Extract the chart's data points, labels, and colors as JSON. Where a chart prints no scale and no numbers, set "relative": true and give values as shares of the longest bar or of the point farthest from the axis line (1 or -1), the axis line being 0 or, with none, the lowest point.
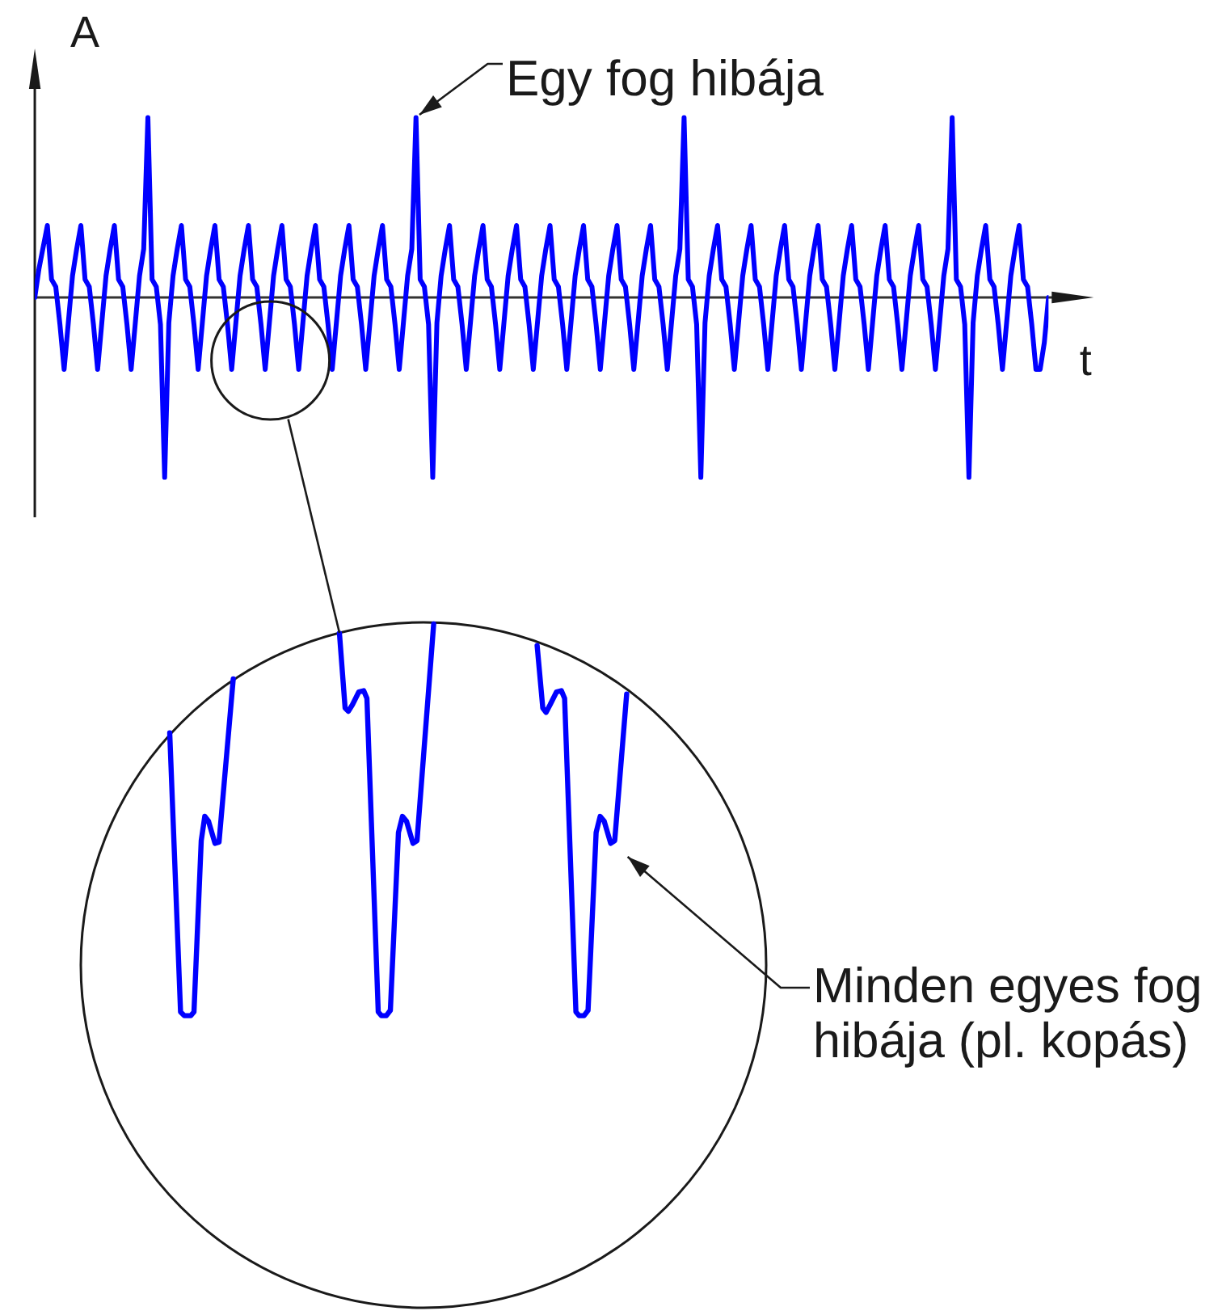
{
  "chart_data": {
    "type": "line",
    "relative": true,
    "xlabel": "t",
    "ylabel": "A",
    "color": "#0000ff",
    "annotations": [
      "Egy fog hibája",
      "Minden egyes fog hibája (pl. kopás)"
    ],
    "categories": [
      null,
      null,
      null,
      null,
      null,
      null,
      null,
      null,
      null,
      null,
      null,
      null,
      null,
      null,
      null,
      null,
      null,
      null,
      null,
      null,
      null,
      null,
      null,
      null,
      null,
      null,
      null,
      null,
      null,
      null,
      null,
      null,
      null,
      null,
      null,
      null,
      null,
      null,
      null,
      null,
      null,
      null,
      null,
      null,
      null,
      null,
      null,
      null,
      null,
      null,
      null,
      null,
      null,
      null,
      null,
      null,
      null,
      null,
      null,
      null,
      null,
      null,
      null,
      null,
      null,
      null,
      null,
      null,
      null,
      null,
      null,
      null,
      null,
      null,
      null,
      null,
      null,
      null,
      null,
      null,
      null,
      null,
      null,
      null,
      null,
      null,
      null,
      null,
      null,
      null,
      null,
      null,
      null,
      null,
      null,
      null,
      null,
      null,
      null,
      null,
      null,
      null,
      null,
      null,
      null,
      null,
      null,
      null,
      null,
      null,
      null,
      null,
      null,
      null,
      null,
      null,
      null,
      null,
      null,
      null,
      null,
      null,
      null,
      null,
      null,
      null,
      null,
      null,
      null,
      null,
      null,
      null,
      null,
      null,
      null,
      null,
      null,
      null,
      null,
      null,
      null,
      null,
      null,
      null,
      null,
      null,
      null,
      null,
      null,
      null,
      null,
      null,
      null,
      null,
      null,
      null,
      null,
      null,
      null,
      null,
      null,
      null,
      null,
      null,
      null,
      null,
      null,
      null,
      null,
      null,
      null,
      null,
      null,
      null,
      null,
      null,
      null,
      null,
      null,
      null,
      null,
      null,
      null,
      null,
      null,
      null,
      null,
      null,
      null,
      null,
      null,
      null,
      null,
      null,
      null,
      null,
      null,
      null,
      null,
      null,
      null,
      null,
      null,
      null,
      null,
      null,
      null,
      null,
      null,
      null,
      null,
      null,
      null,
      null,
      null,
      null,
      null,
      null,
      null,
      null,
      null,
      null,
      null,
      null,
      null,
      null,
      null,
      null,
      null,
      null,
      null,
      null,
      null,
      null,
      null,
      null,
      null,
      null,
      null,
      null,
      null,
      null,
      null
    ],
    "values": [
      0,
      0.16,
      0.28,
      0.4,
      0.1,
      0.06,
      -0.15,
      -0.4,
      -0.14,
      0.12,
      0.27,
      0.4,
      0.1,
      0.06,
      -0.15,
      -0.4,
      -0.14,
      0.12,
      0.27,
      0.4,
      0.1,
      0.06,
      -0.15,
      -0.4,
      -0.14,
      0.12,
      0.27,
      1,
      0.1,
      0.06,
      -0.15,
      -1,
      -0.14,
      0.12,
      0.27,
      0.4,
      0.1,
      0.06,
      -0.15,
      -0.4,
      -0.14,
      0.12,
      0.27,
      0.4,
      0.1,
      0.06,
      -0.15,
      -0.4,
      -0.14,
      0.12,
      0.27,
      0.4,
      0.1,
      0.06,
      -0.15,
      -0.4,
      -0.14,
      0.12,
      0.27,
      0.4,
      0.1,
      0.06,
      -0.15,
      -0.4,
      -0.14,
      0.12,
      0.27,
      0.4,
      0.1,
      0.06,
      -0.15,
      -0.4,
      -0.14,
      0.12,
      0.27,
      0.4,
      0.1,
      0.06,
      -0.15,
      -0.4,
      -0.14,
      0.12,
      0.27,
      0.4,
      0.1,
      0.06,
      -0.15,
      -0.4,
      -0.14,
      0.12,
      0.27,
      1,
      0.1,
      0.06,
      -0.15,
      -1,
      -0.14,
      0.12,
      0.27,
      0.4,
      0.1,
      0.06,
      -0.15,
      -0.4,
      -0.14,
      0.12,
      0.27,
      0.4,
      0.1,
      0.06,
      -0.15,
      -0.4,
      -0.14,
      0.12,
      0.27,
      0.4,
      0.1,
      0.06,
      -0.15,
      -0.4,
      -0.14,
      0.12,
      0.27,
      0.4,
      0.1,
      0.06,
      -0.15,
      -0.4,
      -0.14,
      0.12,
      0.27,
      0.4,
      0.1,
      0.06,
      -0.15,
      -0.4,
      -0.14,
      0.12,
      0.27,
      0.4,
      0.1,
      0.06,
      -0.15,
      -0.4,
      -0.14,
      0.12,
      0.27,
      0.4,
      0.1,
      0.06,
      -0.15,
      -0.4,
      -0.14,
      0.12,
      0.27,
      1,
      0.1,
      0.06,
      -0.15,
      -1,
      -0.14,
      0.12,
      0.27,
      0.4,
      0.1,
      0.06,
      -0.15,
      -0.4,
      -0.14,
      0.12,
      0.27,
      0.4,
      0.1,
      0.06,
      -0.15,
      -0.4,
      -0.14,
      0.12,
      0.27,
      0.4,
      0.1,
      0.06,
      -0.15,
      -0.4,
      -0.14,
      0.12,
      0.27,
      0.4,
      0.1,
      0.06,
      -0.15,
      -0.4,
      -0.14,
      0.12,
      0.27,
      0.4,
      0.1,
      0.06,
      -0.15,
      -0.4,
      -0.14,
      0.12,
      0.27,
      0.4,
      0.1,
      0.06,
      -0.15,
      -0.4,
      -0.14,
      0.12,
      0.27,
      0.4,
      0.1,
      0.06,
      -0.15,
      -0.4,
      -0.14,
      0.12,
      0.27,
      1,
      0.1,
      0.06,
      -0.15,
      -1,
      -0.14,
      0.12,
      0.27,
      0.4,
      0.1,
      0.06,
      -0.15,
      -0.4,
      -0.14,
      0.12,
      0.27,
      0.4,
      0.1,
      0.06,
      -0.15,
      -0.4,
      -0.4,
      -0.25,
      0
    ]
  }
}
